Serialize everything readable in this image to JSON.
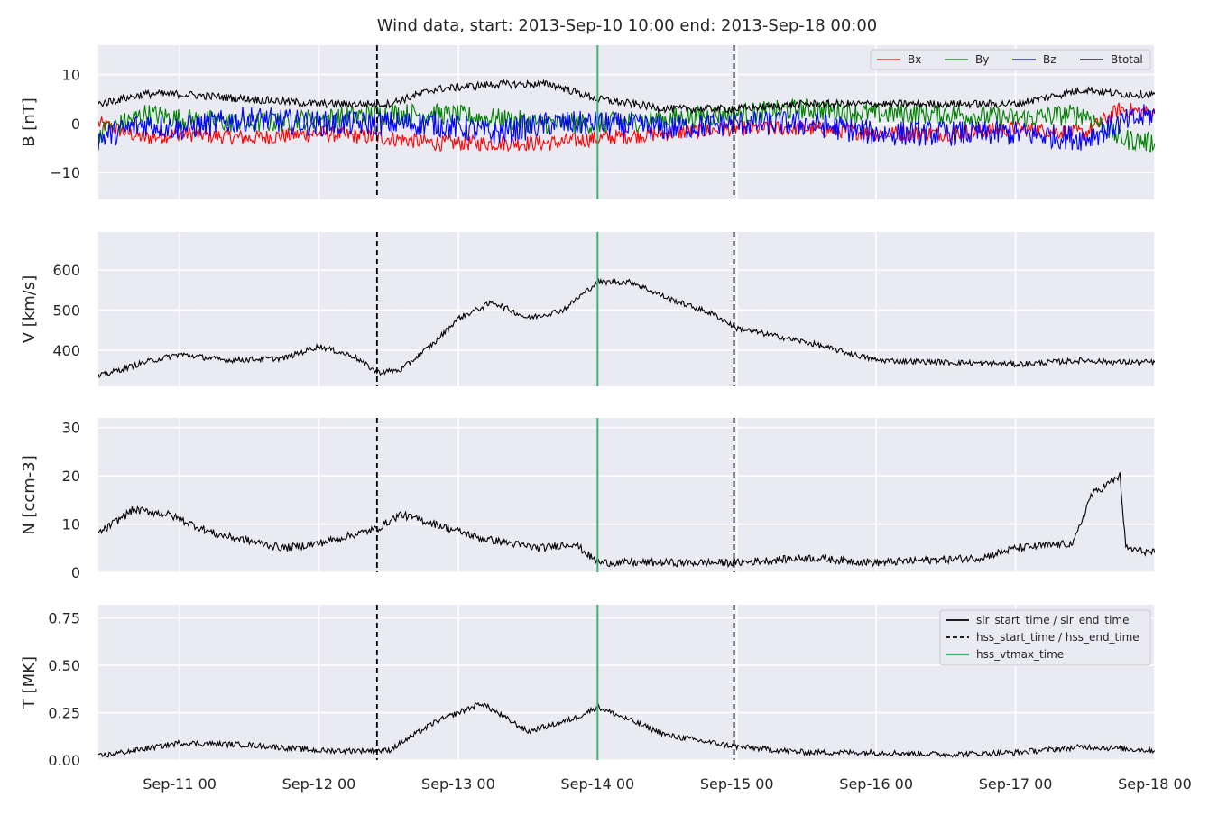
{
  "figure": {
    "title": "Wind data, start: 2013-Sep-10 10:00  end: 2013-Sep-18 00:00"
  },
  "colors": {
    "bg": "#eaeaf2",
    "grid": "#ffffff",
    "bx": "#ff0000",
    "by": "#008000",
    "bz": "#0000ff",
    "btotal": "#000000",
    "line": "#000000",
    "green_marker": "#3cb371"
  },
  "chart_data": {
    "type": "line",
    "x_axis": {
      "range": [
        "2013-09-10T10:00",
        "2013-09-18T00:00"
      ],
      "tick_labels": [
        "Sep-11 00",
        "Sep-12 00",
        "Sep-13 00",
        "Sep-14 00",
        "Sep-15 00",
        "Sep-16 00",
        "Sep-17 00",
        "Sep-18 00"
      ],
      "tick_times": [
        "2013-09-11T00:00",
        "2013-09-12T00:00",
        "2013-09-13T00:00",
        "2013-09-14T00:00",
        "2013-09-15T00:00",
        "2013-09-16T00:00",
        "2013-09-17T00:00",
        "2013-09-18T00:00"
      ]
    },
    "markers": [
      {
        "time": "2013-09-12T10:00",
        "style": "dashed",
        "color": "#000000"
      },
      {
        "time": "2013-09-14T00:00",
        "style": "solid",
        "color": "#3cb371"
      },
      {
        "time": "2013-09-14T23:30",
        "style": "dashed",
        "color": "#000000"
      }
    ],
    "panels": [
      {
        "ylabel": "B [nT]",
        "ylim": [
          -15.5,
          16
        ],
        "yticks": [
          -10,
          0,
          10
        ],
        "ytick_labels": [
          "−10",
          "0",
          "10"
        ],
        "legend": {
          "position": "top-right",
          "orientation": "horizontal",
          "entries": [
            "Bx",
            "By",
            "Bz",
            "Btotal"
          ]
        },
        "series": [
          {
            "name": "Bx",
            "color": "#ff0000",
            "x": [
              "2013-09-10T10:00",
              "2013-09-10T18:00",
              "2013-09-11T00:00",
              "2013-09-11T12:00",
              "2013-09-12T00:00",
              "2013-09-12T12:00",
              "2013-09-12T20:00",
              "2013-09-13T06:00",
              "2013-09-13T16:00",
              "2013-09-14T00:00",
              "2013-09-14T12:00",
              "2013-09-15T00:00",
              "2013-09-15T12:00",
              "2013-09-16T00:00",
              "2013-09-16T12:00",
              "2013-09-17T00:00",
              "2013-09-17T12:00",
              "2013-09-17T18:00",
              "2013-09-18T00:00"
            ],
            "y": [
              0,
              -3,
              -2,
              -3,
              -2,
              -3,
              -4,
              -4,
              -4,
              -3,
              -2,
              -1,
              -1,
              -2,
              -2,
              -1,
              -2,
              3,
              2
            ]
          },
          {
            "name": "By",
            "color": "#008000",
            "x": [
              "2013-09-10T10:00",
              "2013-09-10T18:00",
              "2013-09-11T00:00",
              "2013-09-11T12:00",
              "2013-09-12T00:00",
              "2013-09-12T12:00",
              "2013-09-12T20:00",
              "2013-09-13T06:00",
              "2013-09-13T16:00",
              "2013-09-14T00:00",
              "2013-09-14T12:00",
              "2013-09-15T00:00",
              "2013-09-15T12:00",
              "2013-09-16T00:00",
              "2013-09-16T12:00",
              "2013-09-17T00:00",
              "2013-09-17T12:00",
              "2013-09-17T18:00",
              "2013-09-18T00:00"
            ],
            "y": [
              -2,
              2,
              1,
              0,
              1,
              2,
              2,
              1,
              0,
              0,
              1,
              2,
              3,
              2,
              2,
              1,
              2,
              -3,
              -4
            ]
          },
          {
            "name": "Bz",
            "color": "#0000ff",
            "x": [
              "2013-09-10T10:00",
              "2013-09-10T18:00",
              "2013-09-11T00:00",
              "2013-09-11T12:00",
              "2013-09-12T00:00",
              "2013-09-12T12:00",
              "2013-09-12T20:00",
              "2013-09-13T06:00",
              "2013-09-13T16:00",
              "2013-09-14T00:00",
              "2013-09-14T12:00",
              "2013-09-15T00:00",
              "2013-09-15T12:00",
              "2013-09-16T00:00",
              "2013-09-16T12:00",
              "2013-09-17T00:00",
              "2013-09-17T12:00",
              "2013-09-17T18:00",
              "2013-09-18T00:00"
            ],
            "y": [
              -3,
              0,
              -1,
              1,
              0,
              0,
              0,
              -2,
              0,
              0,
              -1,
              0,
              0,
              -2,
              -2,
              -2,
              -3,
              0,
              2
            ]
          },
          {
            "name": "Btotal",
            "color": "#000000",
            "x": [
              "2013-09-10T10:00",
              "2013-09-10T18:00",
              "2013-09-11T00:00",
              "2013-09-11T12:00",
              "2013-09-12T00:00",
              "2013-09-12T12:00",
              "2013-09-12T20:00",
              "2013-09-13T06:00",
              "2013-09-13T16:00",
              "2013-09-14T00:00",
              "2013-09-14T12:00",
              "2013-09-15T00:00",
              "2013-09-15T12:00",
              "2013-09-16T00:00",
              "2013-09-16T12:00",
              "2013-09-17T00:00",
              "2013-09-17T12:00",
              "2013-09-17T18:00",
              "2013-09-18T00:00"
            ],
            "y": [
              4,
              6,
              6,
              5,
              4,
              4,
              7,
              8,
              8,
              5,
              3,
              3,
              4,
              4,
              4,
              4,
              7,
              6,
              6
            ]
          }
        ]
      },
      {
        "ylabel": "V [km/s]",
        "ylim": [
          310,
          695
        ],
        "yticks": [
          400,
          500,
          600
        ],
        "ytick_labels": [
          "400",
          "500",
          "600"
        ],
        "series": [
          {
            "x": [
              "2013-09-10T10:00",
              "2013-09-10T18:00",
              "2013-09-11T00:00",
              "2013-09-11T08:00",
              "2013-09-11T18:00",
              "2013-09-12T00:00",
              "2013-09-12T06:00",
              "2013-09-12T10:00",
              "2013-09-12T14:00",
              "2013-09-12T20:00",
              "2013-09-13T00:00",
              "2013-09-13T06:00",
              "2013-09-13T12:00",
              "2013-09-13T18:00",
              "2013-09-14T00:00",
              "2013-09-14T06:00",
              "2013-09-14T12:00",
              "2013-09-14T20:00",
              "2013-09-15T00:00",
              "2013-09-15T12:00",
              "2013-09-16T00:00",
              "2013-09-16T12:00",
              "2013-09-17T00:00",
              "2013-09-17T12:00",
              "2013-09-17T17:00",
              "2013-09-18T00:00"
            ],
            "y": [
              335,
              370,
              390,
              375,
              380,
              410,
              385,
              345,
              350,
              420,
              480,
              520,
              480,
              500,
              570,
              570,
              530,
              490,
              455,
              420,
              375,
              370,
              365,
              375,
              370,
              370
            ]
          }
        ]
      },
      {
        "ylabel": "N [ccm-3]",
        "ylim": [
          0,
          32
        ],
        "yticks": [
          0,
          10,
          20,
          30
        ],
        "ytick_labels": [
          "0",
          "10",
          "20",
          "30"
        ],
        "series": [
          {
            "x": [
              "2013-09-10T10:00",
              "2013-09-10T16:00",
              "2013-09-10T22:00",
              "2013-09-11T06:00",
              "2013-09-11T18:00",
              "2013-09-12T00:00",
              "2013-09-12T10:00",
              "2013-09-12T14:00",
              "2013-09-12T20:00",
              "2013-09-13T04:00",
              "2013-09-13T14:00",
              "2013-09-13T20:00",
              "2013-09-14T00:00",
              "2013-09-14T12:00",
              "2013-09-15T00:00",
              "2013-09-15T12:00",
              "2013-09-16T00:00",
              "2013-09-16T18:00",
              "2013-09-17T00:00",
              "2013-09-17T10:00",
              "2013-09-17T13:00",
              "2013-09-17T18:00",
              "2013-09-17T19:00",
              "2013-09-18T00:00"
            ],
            "y": [
              8,
              13,
              12,
              8,
              5,
              6,
              9,
              12,
              10,
              7,
              5,
              6,
              2,
              2,
              2,
              3,
              2,
              3,
              5,
              6,
              16,
              20,
              5,
              4
            ]
          }
        ]
      },
      {
        "ylabel": "T [MK]",
        "ylim": [
          0,
          0.82
        ],
        "yticks": [
          0.0,
          0.25,
          0.5,
          0.75
        ],
        "ytick_labels": [
          "0.00",
          "0.25",
          "0.50",
          "0.75"
        ],
        "legend": {
          "position": "top-right",
          "entries": [
            {
              "label": "sir_start_time / sir_end_time",
              "color": "#000000",
              "style": "solid"
            },
            {
              "label": "hss_start_time / hss_end_time",
              "color": "#000000",
              "style": "dashed"
            },
            {
              "label": "hss_vtmax_time",
              "color": "#3cb371",
              "style": "solid"
            }
          ]
        },
        "series": [
          {
            "x": [
              "2013-09-10T10:00",
              "2013-09-10T18:00",
              "2013-09-11T00:00",
              "2013-09-11T12:00",
              "2013-09-12T00:00",
              "2013-09-12T12:00",
              "2013-09-12T20:00",
              "2013-09-13T04:00",
              "2013-09-13T12:00",
              "2013-09-13T20:00",
              "2013-09-14T00:00",
              "2013-09-14T12:00",
              "2013-09-15T00:00",
              "2013-09-15T12:00",
              "2013-09-16T00:00",
              "2013-09-16T12:00",
              "2013-09-17T00:00",
              "2013-09-17T12:00",
              "2013-09-18T00:00"
            ],
            "y": [
              0.02,
              0.06,
              0.09,
              0.08,
              0.05,
              0.05,
              0.2,
              0.3,
              0.15,
              0.22,
              0.28,
              0.13,
              0.07,
              0.04,
              0.04,
              0.03,
              0.04,
              0.07,
              0.05
            ]
          }
        ]
      }
    ]
  }
}
